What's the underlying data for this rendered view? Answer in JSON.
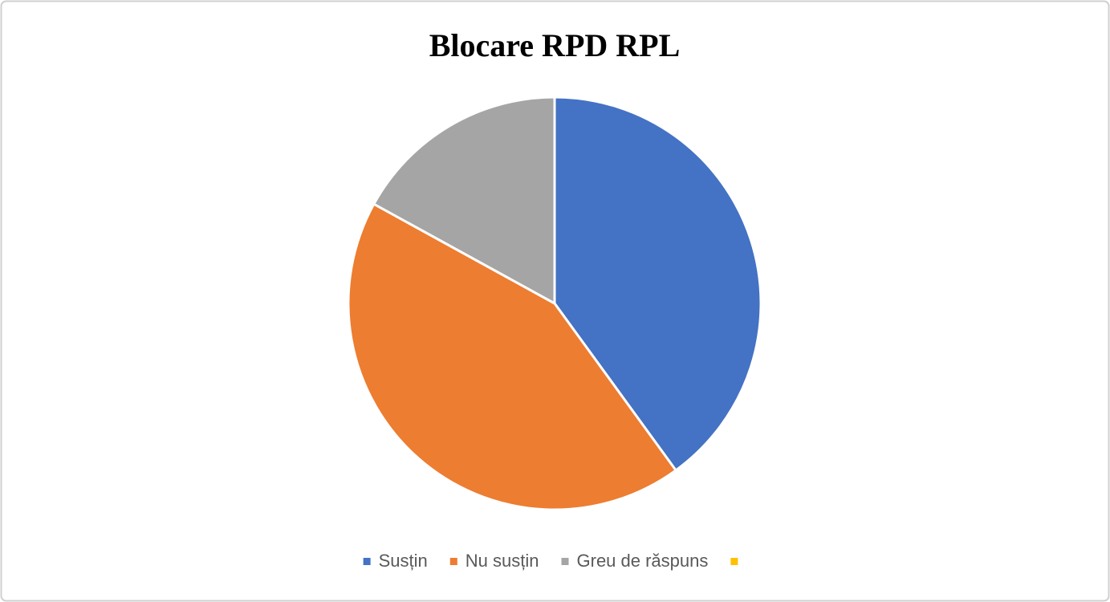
{
  "chart_data": {
    "type": "pie",
    "title": "Blocare RPD RPL",
    "categories": [
      "Susțin",
      "Nu susțin",
      "Greu de răspuns",
      null
    ],
    "values": [
      40,
      43,
      17,
      0
    ],
    "colors": [
      "#4472c4",
      "#ed7d31",
      "#a5a5a5",
      "#ffc000"
    ],
    "legend": "bottom"
  }
}
